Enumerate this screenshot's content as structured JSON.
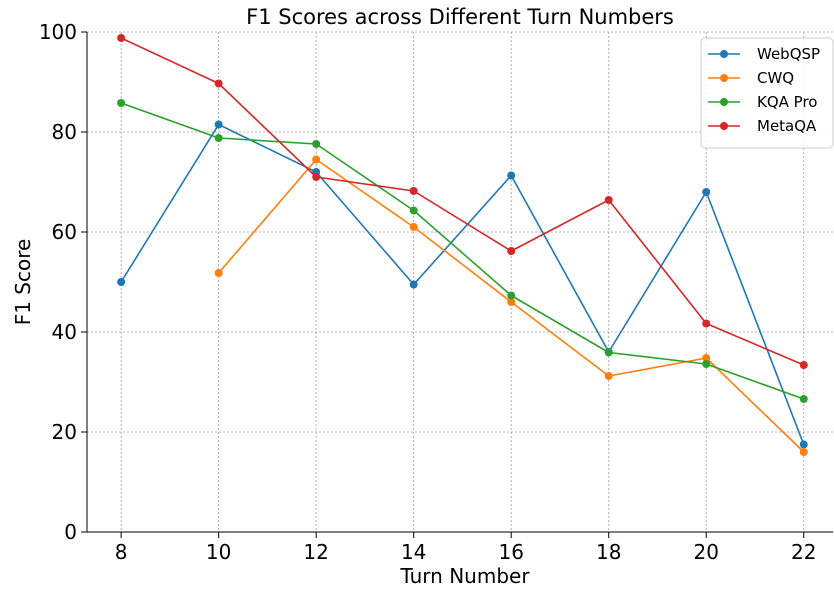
{
  "chart_data": {
    "type": "line",
    "title": "F1 Scores across Different Turn Numbers",
    "xlabel": "Turn Number",
    "ylabel": "F1 Score",
    "x": [
      8,
      10,
      12,
      14,
      16,
      18,
      20,
      22
    ],
    "xlim": [
      7.3,
      22.6
    ],
    "ylim": [
      0,
      100
    ],
    "xticks": [
      "8",
      "10",
      "12",
      "14",
      "16",
      "18",
      "20",
      "22"
    ],
    "yticks": [
      "0",
      "20",
      "40",
      "60",
      "80",
      "100"
    ],
    "grid": true,
    "legend_position": "top-right",
    "series": [
      {
        "name": "WebQSP",
        "color": "#1f77b4",
        "values": [
          50,
          81.5,
          72,
          49.5,
          71.3,
          36,
          68,
          17.5
        ]
      },
      {
        "name": "CWQ",
        "color": "#ff7f0e",
        "values": [
          null,
          51.8,
          74.5,
          61,
          46,
          31.2,
          34.8,
          16
        ]
      },
      {
        "name": "KQA Pro",
        "color": "#2ca02c",
        "values": [
          85.8,
          78.8,
          77.6,
          64.3,
          47.3,
          35.9,
          33.6,
          26.6
        ]
      },
      {
        "name": "MetaQA",
        "color": "#d62728",
        "values": [
          98.8,
          89.7,
          71,
          68.2,
          56.2,
          66.4,
          41.7,
          33.4
        ]
      }
    ]
  }
}
